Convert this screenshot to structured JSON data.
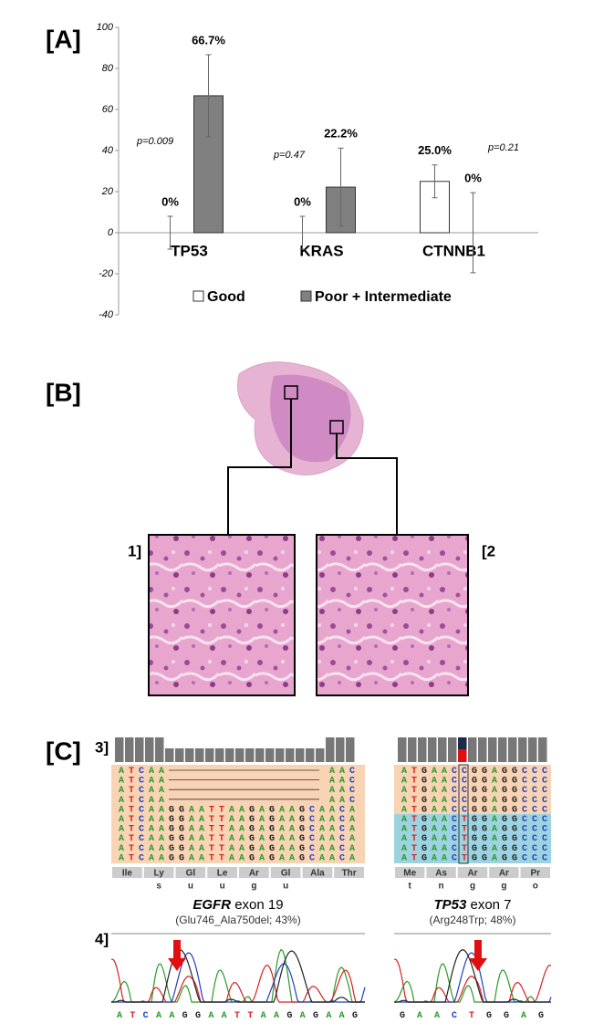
{
  "chart_data": {
    "type": "bar",
    "panel_label": "[A]",
    "categories": [
      "TP53",
      "KRAS",
      "CTNNB1"
    ],
    "series": [
      {
        "name": "Good",
        "color": "#ffffff",
        "values": [
          0,
          0,
          25.0
        ],
        "value_labels": [
          "0%",
          "0%",
          "25.0%"
        ],
        "errors": [
          8,
          8,
          8
        ]
      },
      {
        "name": "Poor + Intermediate",
        "color": "#808080",
        "values": [
          66.7,
          22.2,
          0
        ],
        "value_labels": [
          "66.7%",
          "22.2%",
          "0%"
        ],
        "errors": [
          20,
          19,
          19.5
        ]
      }
    ],
    "annotations": [
      "p=0.009",
      "p=0.47",
      "p=0.21"
    ],
    "ylim": [
      -40,
      100
    ],
    "yticks": [
      -40,
      -20,
      0,
      20,
      40,
      60,
      80,
      100
    ],
    "legend": "bottom"
  },
  "panel_b": {
    "label": "[B]",
    "image_labels": [
      "1]",
      "[2"
    ]
  },
  "panel_c": {
    "label": "[C]",
    "row_labels": [
      "3]",
      "4]"
    ],
    "egfr": {
      "gene": "EGFR",
      "exon": "exon 19",
      "note": "(Glu746_Ala750del; 43%)",
      "deletion_rows": [
        {
          "left": "ATCAA",
          "right": "AAC"
        },
        {
          "left": "ATCAA",
          "right": "AAC"
        },
        {
          "left": "ATCAA",
          "right": "AAC"
        },
        {
          "left": "ATCAA",
          "right": "AAC"
        }
      ],
      "rows": [
        "ATCAAGGAATTAAGAGAAGCAACA",
        "ATCAAGGAATTAAGAGAAGCAACA",
        "ATCAAGGAATTAAGAGAAGCAACA",
        "ATCAAGGAATTAAGAGAAGCAACA",
        "ATCAAGGAATTAAGAGAAGCAACA",
        "ATCAAGGAATTAAGAGAAGCAACA"
      ],
      "amino_acids": [
        [
          "Ile"
        ],
        [
          "Ly",
          "s"
        ],
        [
          "Gl",
          "u"
        ],
        [
          "Le",
          "u"
        ],
        [
          "Ar",
          "g"
        ],
        [
          "Gl",
          "u"
        ],
        [
          "Ala"
        ],
        [
          "Thr"
        ]
      ],
      "trace_sequence": "ATCAAGGAATTAAGAGAAG"
    },
    "tp53": {
      "gene": "TP53",
      "exon": "exon 7",
      "note": "(Arg248Trp; 48%)",
      "rows": [
        "ATGAACCGGAGGCCC",
        "ATGAACCGGAGGCCC",
        "ATGAACCGGAGGCCC",
        "ATGAACCGGAGGCCC",
        "ATGAACCGGAGGCCC",
        "ATGAACTGGAGGCCC",
        "ATGAACTGGAGGCCC",
        "ATGAACTGGAGGCCC",
        "ATGAACTGGAGGCCC",
        "ATGAACTGGAGGCCC"
      ],
      "amino_acids": [
        [
          "Me",
          "t"
        ],
        [
          "As",
          "n"
        ],
        [
          "Ar",
          "g"
        ],
        [
          "Ar",
          "g"
        ],
        [
          "Pr",
          "o"
        ]
      ],
      "trace_sequence": "GAACTGGAG"
    }
  }
}
